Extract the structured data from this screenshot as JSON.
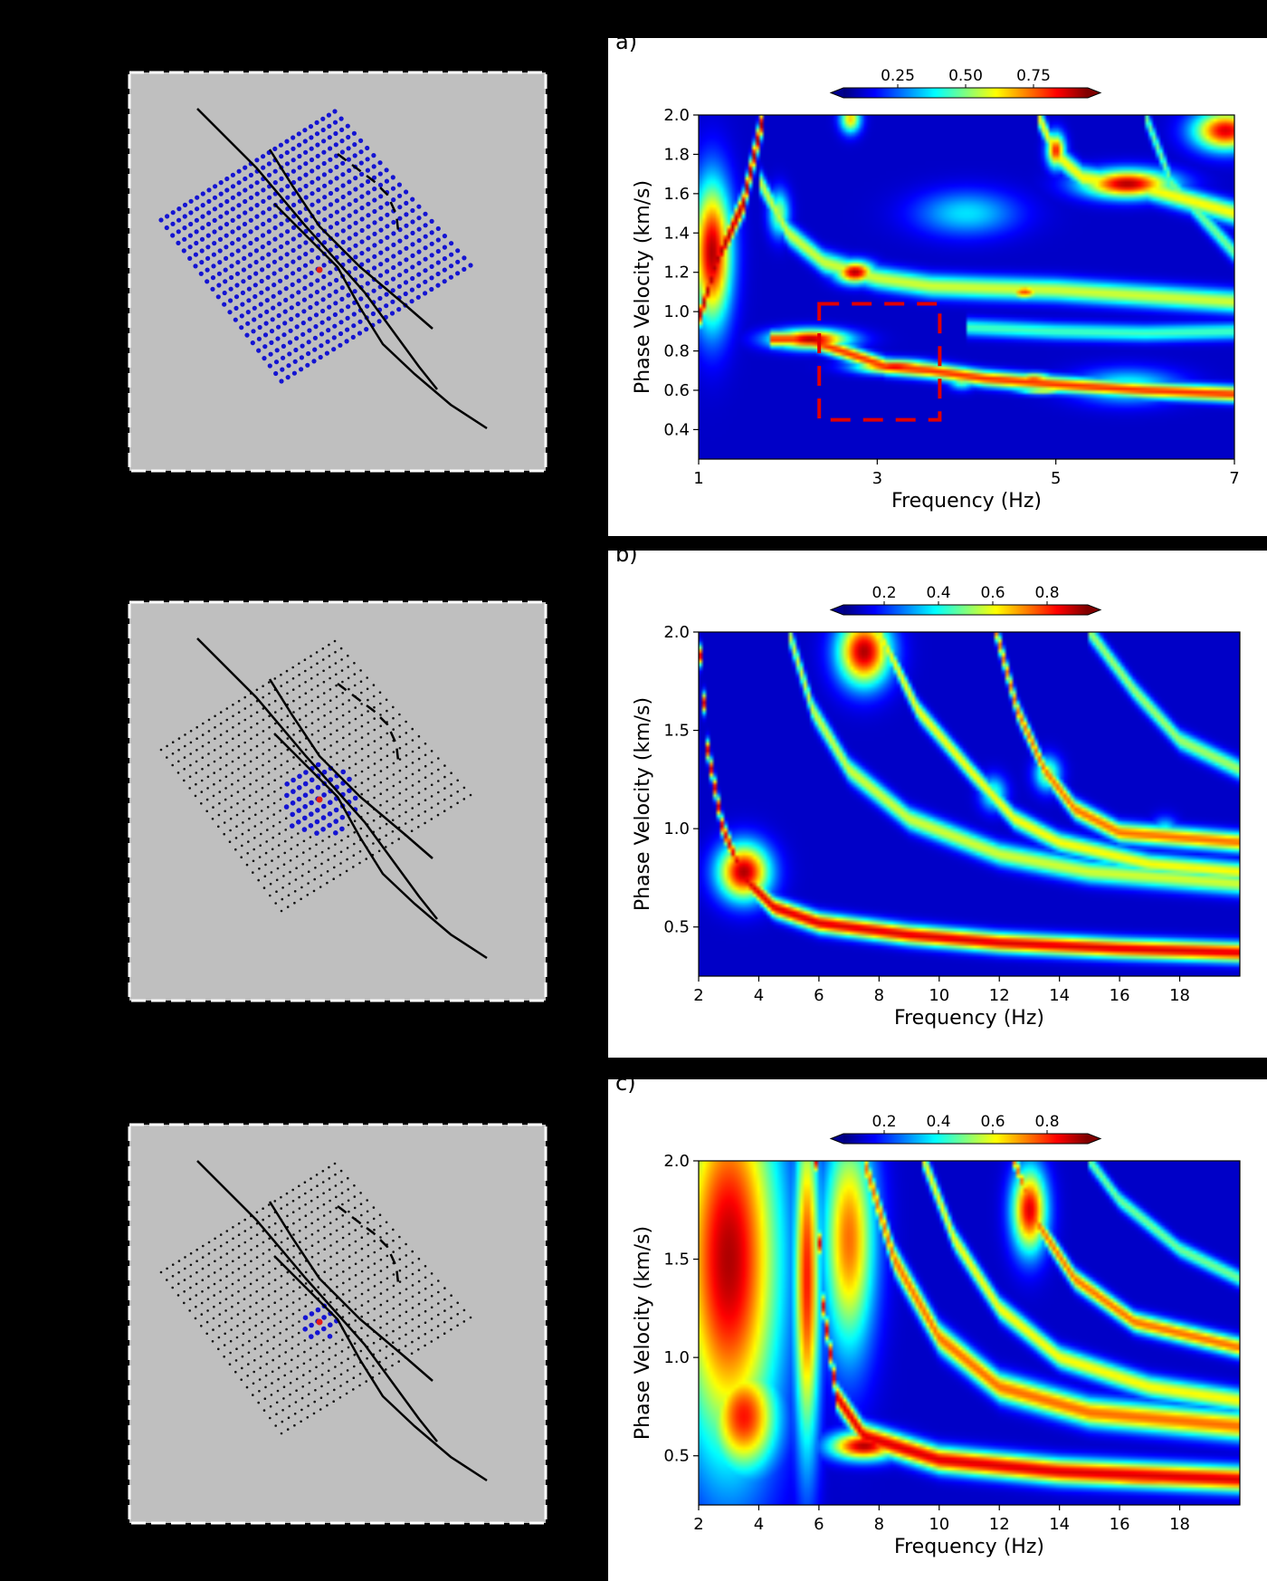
{
  "colors": {
    "page_bg": "#000000",
    "map_bg": "#bfbfbf",
    "station": "#1414d2",
    "station_small": "#111111",
    "source": "#e11d1d",
    "fault": "#000000",
    "box": "#e00000"
  },
  "panels": [
    {
      "label": "a)",
      "map": {
        "highlight": "all",
        "fault_lines": 3
      },
      "chart_data": {
        "type": "heatmap",
        "colormap": "jet",
        "xlabel": "Frequency (Hz)",
        "ylabel": "Phase Velocity (km/s)",
        "xlim": [
          1,
          7
        ],
        "ylim": [
          0.25,
          2.0
        ],
        "xticks": [
          "1",
          "3",
          "5",
          "7"
        ],
        "yticks": [
          "0.4",
          "0.6",
          "0.8",
          "1.0",
          "1.2",
          "1.4",
          "1.6",
          "1.8",
          "2.0"
        ],
        "colorbar": {
          "ticks": [
            "0.25",
            "0.50",
            "0.75"
          ],
          "range": [
            0.05,
            0.95
          ]
        },
        "highlight_box": {
          "x": [
            2.35,
            3.7
          ],
          "v": [
            0.45,
            1.04
          ]
        },
        "ridges": [
          {
            "pts": [
              [
                1.0,
                0.96
              ],
              [
                1.2,
                1.25
              ],
              [
                1.35,
                1.4
              ],
              [
                1.5,
                1.55
              ],
              [
                1.7,
                1.95
              ]
            ],
            "width": 0.045,
            "amp": 0.95
          },
          {
            "pts": [
              [
                1.8,
                0.86
              ],
              [
                2.2,
                0.86
              ],
              [
                2.6,
                0.8
              ],
              [
                3.1,
                0.72
              ],
              [
                3.6,
                0.7
              ],
              [
                4.2,
                0.66
              ],
              [
                5.0,
                0.63
              ],
              [
                6.0,
                0.6
              ],
              [
                7.0,
                0.58
              ]
            ],
            "width": 0.028,
            "amp": 0.82
          },
          {
            "pts": [
              [
                1.7,
                1.65
              ],
              [
                2.0,
                1.4
              ],
              [
                2.4,
                1.25
              ],
              [
                3.0,
                1.17
              ],
              [
                3.6,
                1.13
              ],
              [
                4.2,
                1.12
              ],
              [
                5.0,
                1.11
              ],
              [
                6.0,
                1.08
              ],
              [
                7.0,
                1.05
              ]
            ],
            "width": 0.04,
            "amp": 0.55
          },
          {
            "pts": [
              [
                4.0,
                0.92
              ],
              [
                5.0,
                0.9
              ],
              [
                6.0,
                0.89
              ],
              [
                7.0,
                0.9
              ]
            ],
            "width": 0.03,
            "amp": 0.4
          },
          {
            "pts": [
              [
                4.8,
                2.0
              ],
              [
                5.0,
                1.8
              ],
              [
                5.3,
                1.68
              ],
              [
                6.0,
                1.63
              ],
              [
                7.0,
                1.5
              ]
            ],
            "width": 0.04,
            "amp": 0.6
          },
          {
            "pts": [
              [
                6.0,
                2.0
              ],
              [
                6.3,
                1.65
              ],
              [
                7.0,
                1.3
              ]
            ],
            "width": 0.035,
            "amp": 0.45
          }
        ],
        "blobs": [
          {
            "x": 1.15,
            "v": 1.3,
            "sx": 0.15,
            "sv": 0.25,
            "amp": 0.95
          },
          {
            "x": 2.25,
            "v": 0.86,
            "sx": 0.3,
            "sv": 0.035,
            "amp": 0.95
          },
          {
            "x": 3.2,
            "v": 0.72,
            "sx": 0.3,
            "sv": 0.025,
            "amp": 0.9
          },
          {
            "x": 2.75,
            "v": 1.2,
            "sx": 0.15,
            "sv": 0.04,
            "amp": 0.95
          },
          {
            "x": 5.8,
            "v": 1.65,
            "sx": 0.35,
            "sv": 0.05,
            "amp": 0.95
          },
          {
            "x": 5.0,
            "v": 1.82,
            "sx": 0.07,
            "sv": 0.06,
            "amp": 0.85
          },
          {
            "x": 6.9,
            "v": 1.92,
            "sx": 0.25,
            "sv": 0.07,
            "amp": 0.9
          },
          {
            "x": 2.7,
            "v": 1.98,
            "sx": 0.08,
            "sv": 0.05,
            "amp": 0.65
          },
          {
            "x": 4.65,
            "v": 1.1,
            "sx": 0.12,
            "sv": 0.025,
            "amp": 0.8
          },
          {
            "x": 4.0,
            "v": 1.12,
            "sx": 0.1,
            "sv": 0.025,
            "amp": 0.5
          },
          {
            "x": 4.75,
            "v": 0.66,
            "sx": 0.15,
            "sv": 0.02,
            "amp": 0.75
          },
          {
            "x": 4.85,
            "v": 0.6,
            "sx": 0.2,
            "sv": 0.015,
            "amp": 0.6
          },
          {
            "x": 5.8,
            "v": 0.62,
            "sx": 0.4,
            "sv": 0.06,
            "amp": 0.38
          },
          {
            "x": 1.9,
            "v": 1.5,
            "sx": 0.08,
            "sv": 0.08,
            "amp": 0.5
          },
          {
            "x": 4.0,
            "v": 1.5,
            "sx": 0.4,
            "sv": 0.08,
            "amp": 0.3
          },
          {
            "x": 3.95,
            "v": 0.65,
            "sx": 0.1,
            "sv": 0.03,
            "amp": 0.5
          }
        ]
      }
    },
    {
      "label": "b)",
      "map": {
        "highlight": "medium",
        "fault_lines": 3
      },
      "chart_data": {
        "type": "heatmap",
        "colormap": "jet",
        "xlabel": "Frequency (Hz)",
        "ylabel": "Phase Velocity (km/s)",
        "xlim": [
          2,
          20
        ],
        "ylim": [
          0.25,
          2.0
        ],
        "xticks": [
          "2",
          "4",
          "6",
          "8",
          "10",
          "12",
          "14",
          "16",
          "18"
        ],
        "yticks": [
          "0.5",
          "1.0",
          "1.5",
          "2.0"
        ],
        "colorbar": {
          "ticks": [
            "0.2",
            "0.4",
            "0.6",
            "0.8"
          ],
          "range": [
            0.05,
            0.95
          ]
        },
        "ridges": [
          {
            "pts": [
              [
                2.0,
                2.0
              ],
              [
                2.3,
                1.4
              ],
              [
                2.8,
                1.0
              ],
              [
                3.5,
                0.75
              ],
              [
                4.5,
                0.6
              ],
              [
                6.0,
                0.52
              ],
              [
                9.0,
                0.46
              ],
              [
                12.0,
                0.42
              ],
              [
                16.0,
                0.39
              ],
              [
                20.0,
                0.37
              ]
            ],
            "width": 0.035,
            "amp": 0.9
          },
          {
            "pts": [
              [
                5.0,
                2.0
              ],
              [
                5.8,
                1.6
              ],
              [
                7.0,
                1.3
              ],
              [
                9.0,
                1.05
              ],
              [
                12.0,
                0.87
              ],
              [
                15.0,
                0.78
              ],
              [
                20.0,
                0.72
              ]
            ],
            "width": 0.04,
            "amp": 0.55
          },
          {
            "pts": [
              [
                8.0,
                2.0
              ],
              [
                9.3,
                1.6
              ],
              [
                11.0,
                1.3
              ],
              [
                12.5,
                1.05
              ],
              [
                14.0,
                0.93
              ],
              [
                17.0,
                0.82
              ],
              [
                20.0,
                0.78
              ]
            ],
            "width": 0.035,
            "amp": 0.6
          },
          {
            "pts": [
              [
                11.9,
                2.0
              ],
              [
                12.6,
                1.6
              ],
              [
                13.5,
                1.3
              ],
              [
                14.5,
                1.1
              ],
              [
                16.0,
                0.98
              ],
              [
                20.0,
                0.93
              ]
            ],
            "width": 0.035,
            "amp": 0.75
          },
          {
            "pts": [
              [
                15.0,
                2.0
              ],
              [
                16.5,
                1.7
              ],
              [
                18.0,
                1.45
              ],
              [
                20.0,
                1.3
              ]
            ],
            "width": 0.035,
            "amp": 0.5
          }
        ],
        "blobs": [
          {
            "x": 3.5,
            "v": 0.78,
            "sx": 0.6,
            "sv": 0.1,
            "amp": 0.95
          },
          {
            "x": 7.5,
            "v": 1.9,
            "sx": 0.6,
            "sv": 0.12,
            "amp": 0.95
          },
          {
            "x": 6.8,
            "v": 0.52,
            "sx": 0.3,
            "sv": 0.02,
            "amp": 0.8
          },
          {
            "x": 10.0,
            "v": 0.45,
            "sx": 0.8,
            "sv": 0.02,
            "amp": 0.85
          },
          {
            "x": 18.0,
            "v": 0.38,
            "sx": 1.8,
            "sv": 0.015,
            "amp": 0.85
          },
          {
            "x": 13.6,
            "v": 1.28,
            "sx": 0.3,
            "sv": 0.06,
            "amp": 0.5
          },
          {
            "x": 11.8,
            "v": 1.18,
            "sx": 0.3,
            "sv": 0.06,
            "amp": 0.4
          },
          {
            "x": 17.5,
            "v": 0.98,
            "sx": 0.3,
            "sv": 0.05,
            "amp": 0.4
          }
        ]
      }
    },
    {
      "label": "c)",
      "map": {
        "highlight": "small",
        "fault_lines": 3
      },
      "chart_data": {
        "type": "heatmap",
        "colormap": "jet",
        "xlabel": "Frequency (Hz)",
        "ylabel": "Phase Velocity (km/s)",
        "xlim": [
          2,
          20
        ],
        "ylim": [
          0.25,
          2.0
        ],
        "xticks": [
          "2",
          "4",
          "6",
          "8",
          "10",
          "12",
          "14",
          "16",
          "18"
        ],
        "yticks": [
          "0.5",
          "1.0",
          "1.5",
          "2.0"
        ],
        "colorbar": {
          "ticks": [
            "0.2",
            "0.4",
            "0.6",
            "0.8"
          ],
          "range": [
            0.05,
            0.95
          ]
        },
        "ridges": [
          {
            "pts": [
              [
                5.9,
                2.0
              ],
              [
                6.1,
                1.3
              ],
              [
                6.6,
                0.8
              ],
              [
                7.5,
                0.6
              ],
              [
                10.0,
                0.48
              ],
              [
                14.0,
                0.42
              ],
              [
                20.0,
                0.38
              ]
            ],
            "width": 0.045,
            "amp": 0.9
          },
          {
            "pts": [
              [
                7.5,
                2.0
              ],
              [
                8.5,
                1.5
              ],
              [
                10.0,
                1.1
              ],
              [
                12.0,
                0.85
              ],
              [
                15.0,
                0.72
              ],
              [
                20.0,
                0.65
              ]
            ],
            "width": 0.05,
            "amp": 0.75
          },
          {
            "pts": [
              [
                9.5,
                2.0
              ],
              [
                10.5,
                1.6
              ],
              [
                12.0,
                1.25
              ],
              [
                14.0,
                1.0
              ],
              [
                17.0,
                0.85
              ],
              [
                20.0,
                0.78
              ]
            ],
            "width": 0.04,
            "amp": 0.6
          },
          {
            "pts": [
              [
                12.5,
                2.0
              ],
              [
                13.2,
                1.7
              ],
              [
                14.5,
                1.4
              ],
              [
                16.5,
                1.18
              ],
              [
                20.0,
                1.05
              ]
            ],
            "width": 0.035,
            "amp": 0.75
          },
          {
            "pts": [
              [
                15.0,
                2.0
              ],
              [
                16.0,
                1.8
              ],
              [
                18.0,
                1.55
              ],
              [
                20.0,
                1.4
              ]
            ],
            "width": 0.03,
            "amp": 0.45
          }
        ],
        "blobs": [
          {
            "x": 3.0,
            "v": 1.5,
            "sx": 1.2,
            "sv": 0.7,
            "amp": 0.95
          },
          {
            "x": 3.5,
            "v": 0.7,
            "sx": 0.8,
            "sv": 0.2,
            "amp": 0.85
          },
          {
            "x": 5.6,
            "v": 1.4,
            "sx": 0.3,
            "sv": 0.6,
            "amp": 0.85
          },
          {
            "x": 7.0,
            "v": 1.6,
            "sx": 0.6,
            "sv": 0.4,
            "amp": 0.75
          },
          {
            "x": 7.5,
            "v": 0.55,
            "sx": 0.8,
            "sv": 0.05,
            "amp": 0.95
          },
          {
            "x": 13.0,
            "v": 1.75,
            "sx": 0.4,
            "sv": 0.15,
            "amp": 0.9
          },
          {
            "x": 12.8,
            "v": 0.42,
            "sx": 1.5,
            "sv": 0.02,
            "amp": 0.55
          },
          {
            "x": 17.0,
            "v": 0.37,
            "sx": 1.8,
            "sv": 0.012,
            "amp": 0.8
          }
        ]
      }
    }
  ]
}
